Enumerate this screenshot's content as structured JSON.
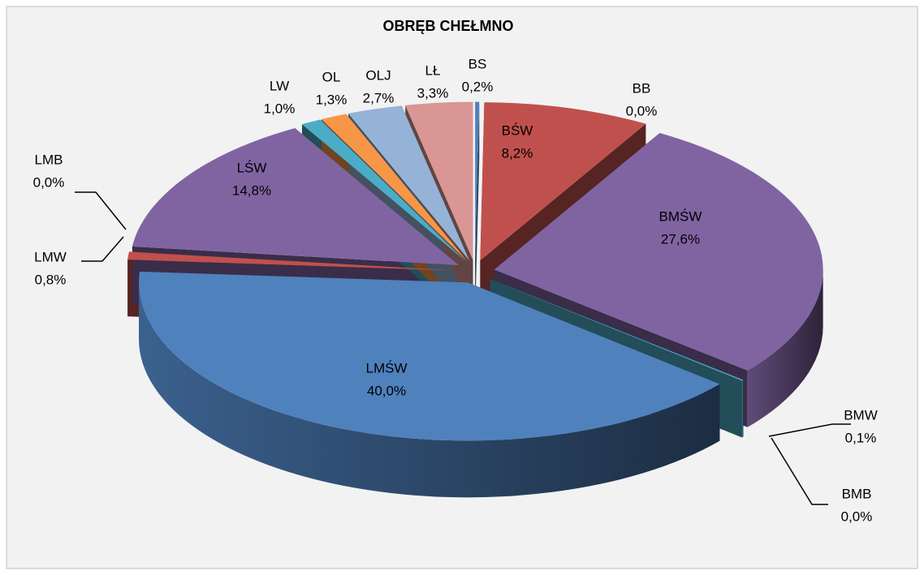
{
  "chart_data": {
    "type": "pie3d",
    "title": "OBRĘB CHEŁMNO",
    "categories": [
      "BS",
      "BŚW",
      "BB",
      "BMŚW",
      "BMW",
      "BMB",
      "LMŚW",
      "LMW",
      "LMB",
      "LŚW",
      "LW",
      "OL",
      "OLJ",
      "LŁ"
    ],
    "values": [
      0.2,
      8.2,
      0.0,
      27.6,
      0.1,
      0.0,
      40.0,
      0.8,
      0.0,
      14.8,
      1.0,
      1.3,
      2.7,
      3.3
    ],
    "value_labels": [
      "0,2%",
      "8,2%",
      "0,0%",
      "27,6%",
      "0,1%",
      "0,0%",
      "40,0%",
      "0,8%",
      "0,0%",
      "14,8%",
      "1,0%",
      "1,3%",
      "2,7%",
      "3,3%"
    ],
    "colors": [
      "#4f81bd",
      "#c0504d",
      "#9bbb59",
      "#8064a2",
      "#4bacc6",
      "#f79646",
      "#4f81bd",
      "#c0504d",
      "#9bbb59",
      "#8064a2",
      "#4bacc6",
      "#f79646",
      "#95b3d7",
      "#d99694"
    ]
  }
}
